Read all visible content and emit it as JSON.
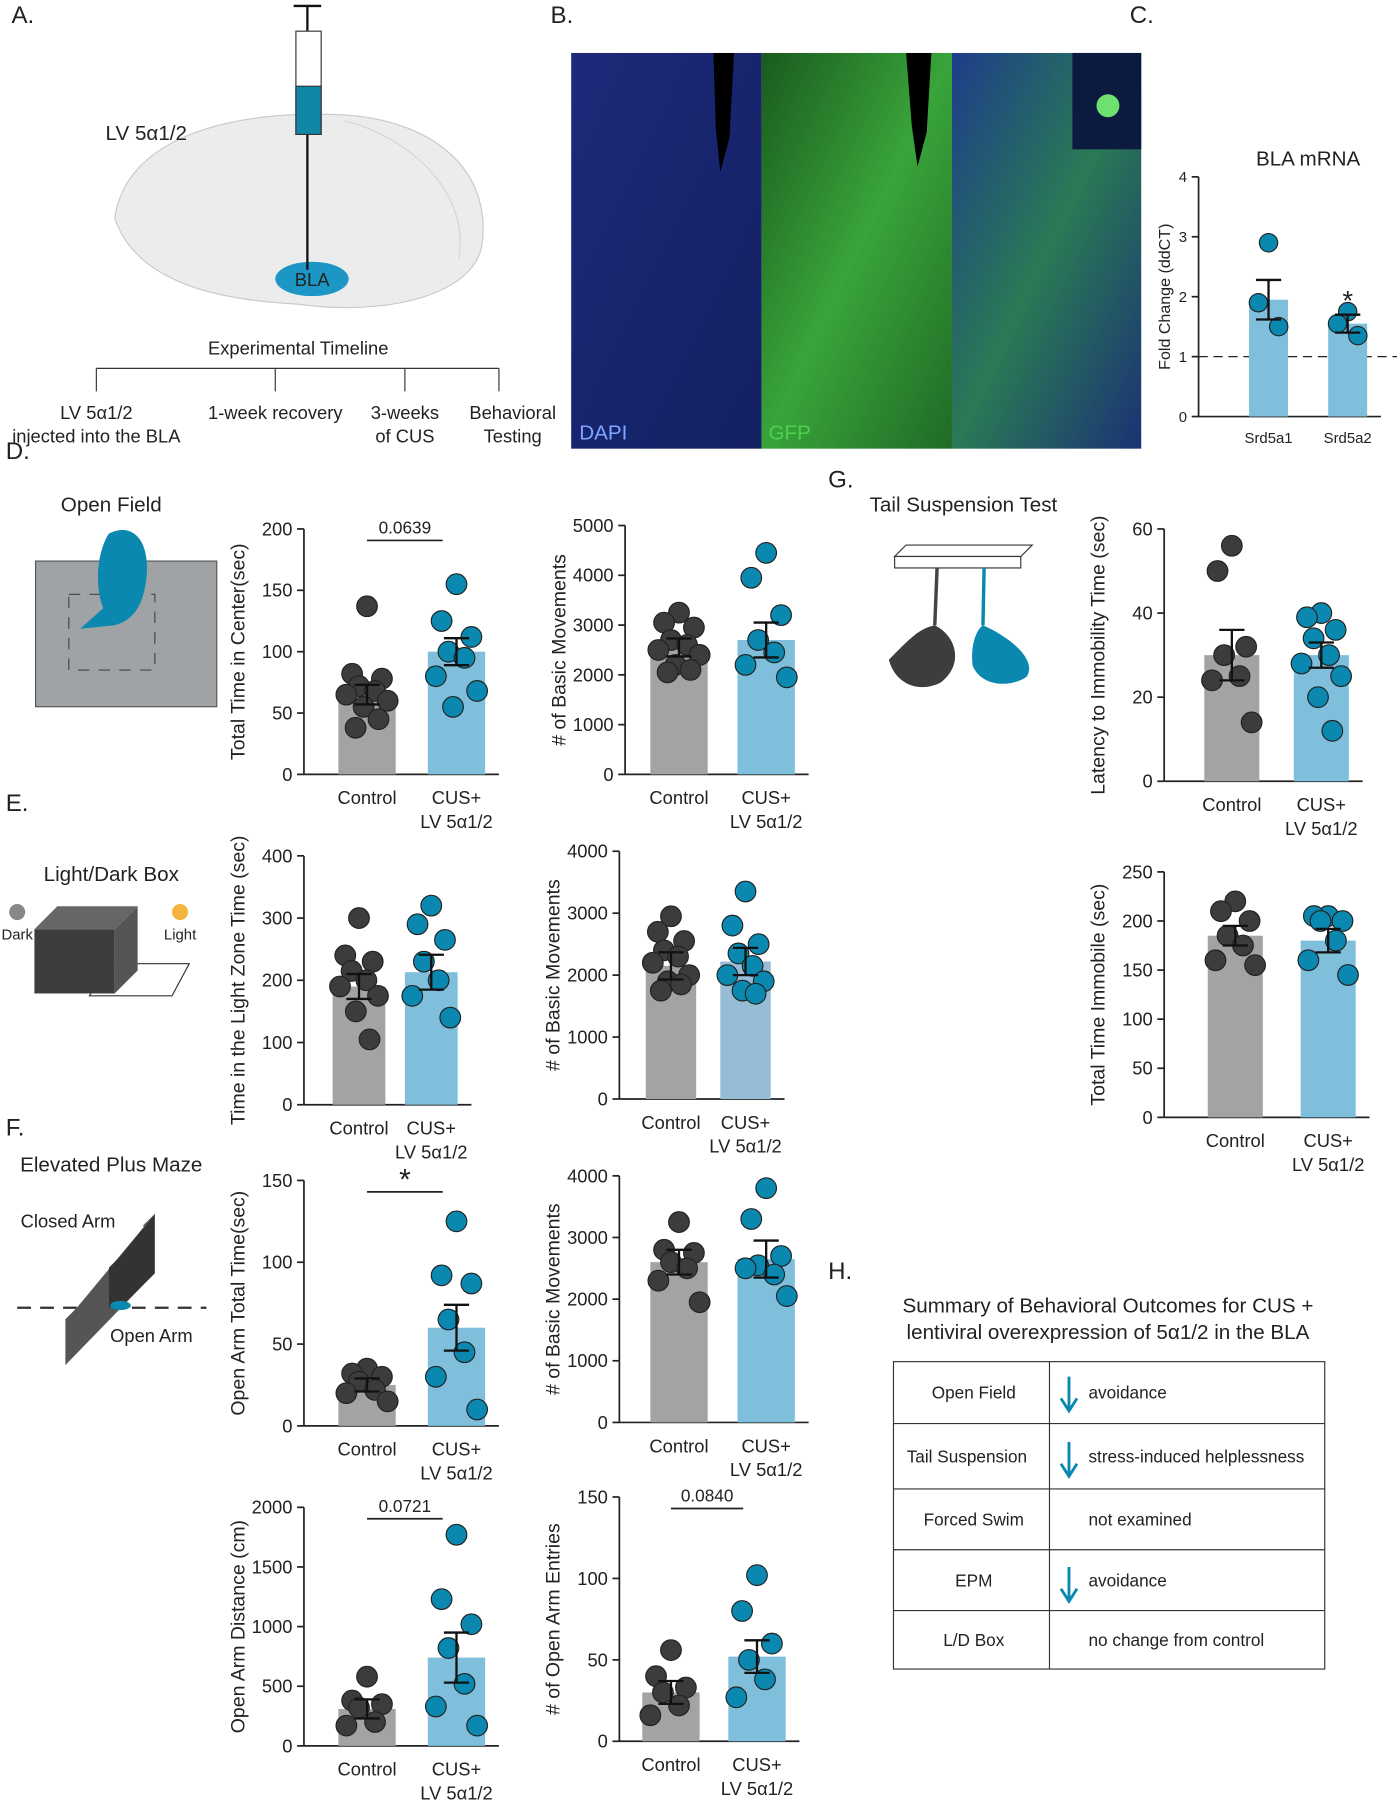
{
  "panels": {
    "a": "A.",
    "b": "B.",
    "c": "C.",
    "d": "D.",
    "e": "E.",
    "f": "F.",
    "g": "G.",
    "h": "H."
  },
  "illustration": {
    "virus": "LV 5α1/2",
    "region": "BLA",
    "timeline_title": "Experimental Timeline",
    "timeline": [
      "LV 5α1/2\ninjected into the BLA",
      "1-week recovery",
      "3-weeks\nof CUS",
      "Behavioral\nTesting"
    ],
    "stain_dapi": "DAPI",
    "stain_gfp": "GFP",
    "open_field": "Open Field",
    "light_dark": "Light/Dark Box",
    "dark": "Dark",
    "light": "Light",
    "epm": "Elevated Plus Maze",
    "closed_arm": "Closed Arm",
    "open_arm": "Open Arm",
    "tail": "Tail Suspension Test"
  },
  "table": {
    "title": "Summary of Behavioral Outcomes for CUS +\nlentiviral overexpression of 5α1/2 in the BLA",
    "rows": [
      [
        "Open Field",
        "avoidance"
      ],
      [
        "Tail Suspension",
        "stress-induced helplessness"
      ],
      [
        "Forced Swim",
        "not examined"
      ],
      [
        "EPM",
        "avoidance"
      ],
      [
        "L/D Box",
        "no change from control"
      ]
    ]
  },
  "chart_data": [
    {
      "type": "bar",
      "title": "BLA mRNA",
      "ylabel": "Fold Change (ddCT)",
      "categories": [
        "Srd5a1",
        "Srd5a2"
      ],
      "values": [
        1.95,
        1.55
      ],
      "errors": [
        0.33,
        0.15
      ],
      "points": [
        [
          2.9,
          1.9,
          1.5
        ],
        [
          1.75,
          1.55,
          1.35
        ]
      ],
      "colors": [
        "#7fbfdb",
        "#7fbfdb"
      ],
      "point_colors": [
        "#0b88b0",
        "#0b88b0"
      ],
      "ylim": [
        0,
        4
      ],
      "yticks": [
        0,
        1,
        2,
        3,
        4
      ],
      "reference_line": 1,
      "annotation": "*"
    },
    {
      "type": "bar",
      "ylabel": "Total Time in Center(sec)",
      "categories": [
        "Control",
        "CUS+\nLV 5α1/2"
      ],
      "values": [
        65,
        100
      ],
      "errors": [
        8,
        11
      ],
      "points": [
        [
          137,
          82,
          78,
          72,
          68,
          65,
          60,
          55,
          45,
          38
        ],
        [
          155,
          125,
          112,
          100,
          95,
          80,
          68,
          55
        ]
      ],
      "colors": [
        "#a3a3a3",
        "#7fbfdb"
      ],
      "point_colors": [
        "#3c3c3c",
        "#0b88b0"
      ],
      "ylim": [
        0,
        200
      ],
      "yticks": [
        0,
        50,
        100,
        150,
        200
      ],
      "bracket_label": "0.0639"
    },
    {
      "type": "bar",
      "ylabel": "# of Basic Movements",
      "categories": [
        "Control",
        "CUS+\nLV 5α1/2"
      ],
      "values": [
        2550,
        2700
      ],
      "errors": [
        180,
        350
      ],
      "points": [
        [
          3250,
          3050,
          2950,
          2700,
          2600,
          2500,
          2400,
          2200,
          2100,
          2050
        ],
        [
          4450,
          3950,
          3200,
          2700,
          2450,
          2200,
          1950
        ]
      ],
      "colors": [
        "#a3a3a3",
        "#7fbfdb"
      ],
      "point_colors": [
        "#3c3c3c",
        "#0b88b0"
      ],
      "ylim": [
        0,
        5000
      ],
      "yticks": [
        0,
        1000,
        2000,
        3000,
        4000,
        5000
      ]
    },
    {
      "type": "bar",
      "ylabel": "Time in the Light Zone Time (sec)",
      "categories": [
        "Control",
        "CUS+\nLV 5α1/2"
      ],
      "values": [
        190,
        213
      ],
      "errors": [
        20,
        28
      ],
      "points": [
        [
          300,
          240,
          230,
          215,
          200,
          190,
          175,
          150,
          105
        ],
        [
          320,
          290,
          265,
          230,
          200,
          175,
          140
        ]
      ],
      "colors": [
        "#a3a3a3",
        "#7fbfdb"
      ],
      "point_colors": [
        "#3c3c3c",
        "#0b88b0"
      ],
      "ylim": [
        0,
        400
      ],
      "yticks": [
        0,
        100,
        200,
        300,
        400
      ]
    },
    {
      "type": "bar",
      "ylabel": "# of Basic Movements",
      "categories": [
        "Control",
        "CUS+\nLV 5α1/2"
      ],
      "values": [
        2150,
        2220
      ],
      "errors": [
        220,
        220
      ],
      "points": [
        [
          2950,
          2700,
          2550,
          2400,
          2300,
          2200,
          2000,
          1900,
          1850,
          1750
        ],
        [
          3350,
          2800,
          2500,
          2350,
          2150,
          2000,
          1900,
          1750,
          1700
        ]
      ],
      "colors": [
        "#a3a3a3",
        "#97bcd6"
      ],
      "point_colors": [
        "#3c3c3c",
        "#0b88b0"
      ],
      "ylim": [
        0,
        4000
      ],
      "yticks": [
        0,
        1000,
        2000,
        3000,
        4000
      ]
    },
    {
      "type": "bar",
      "ylabel": "Open Arm Total Time(sec)",
      "categories": [
        "Control",
        "CUS+\nLV 5α1/2"
      ],
      "values": [
        25,
        60
      ],
      "errors": [
        4,
        14
      ],
      "points": [
        [
          35,
          32,
          30,
          27,
          22,
          20,
          15
        ],
        [
          125,
          92,
          87,
          65,
          45,
          30,
          10
        ]
      ],
      "colors": [
        "#a3a3a3",
        "#7fbfdb"
      ],
      "point_colors": [
        "#3c3c3c",
        "#0b88b0"
      ],
      "ylim": [
        0,
        150
      ],
      "yticks": [
        0,
        50,
        100,
        150
      ],
      "bracket_label": "*"
    },
    {
      "type": "bar",
      "ylabel": "# of Basic Movements",
      "categories": [
        "Control",
        "CUS+\nLV 5α1/2"
      ],
      "values": [
        2600,
        2650
      ],
      "errors": [
        200,
        300
      ],
      "points": [
        [
          3250,
          2800,
          2750,
          2600,
          2500,
          2300,
          1950
        ],
        [
          3800,
          3300,
          2700,
          2550,
          2400,
          2500,
          2050
        ]
      ],
      "colors": [
        "#a3a3a3",
        "#7fbfdb"
      ],
      "point_colors": [
        "#3c3c3c",
        "#0b88b0"
      ],
      "ylim": [
        0,
        4000
      ],
      "yticks": [
        0,
        1000,
        2000,
        3000,
        4000
      ]
    },
    {
      "type": "bar",
      "ylabel": "Open Arm Distance (cm)",
      "categories": [
        "Control",
        "CUS+\nLV 5α1/2"
      ],
      "values": [
        310,
        740
      ],
      "errors": [
        80,
        210
      ],
      "points": [
        [
          580,
          380,
          350,
          320,
          200,
          170
        ],
        [
          1770,
          1230,
          1020,
          820,
          520,
          330,
          170
        ]
      ],
      "colors": [
        "#a3a3a3",
        "#7fbfdb"
      ],
      "point_colors": [
        "#3c3c3c",
        "#0b88b0"
      ],
      "ylim": [
        0,
        2000
      ],
      "yticks": [
        0,
        500,
        1000,
        1500,
        2000
      ],
      "bracket_label": "0.0721"
    },
    {
      "type": "bar",
      "ylabel": "# of Open Arm Entries",
      "categories": [
        "Control",
        "CUS+\nLV 5α1/2"
      ],
      "values": [
        30,
        52
      ],
      "errors": [
        7,
        10
      ],
      "points": [
        [
          56,
          40,
          33,
          30,
          22,
          16
        ],
        [
          102,
          80,
          60,
          50,
          38,
          27
        ]
      ],
      "colors": [
        "#a3a3a3",
        "#7fbfdb"
      ],
      "point_colors": [
        "#3c3c3c",
        "#0b88b0"
      ],
      "ylim": [
        0,
        150
      ],
      "yticks": [
        0,
        50,
        100,
        150
      ],
      "bracket_label": "0.0840"
    },
    {
      "type": "bar",
      "ylabel": "Latency to Immobility Time (sec)",
      "categories": [
        "Control",
        "CUS+\nLV 5α1/2"
      ],
      "values": [
        30,
        30
      ],
      "errors": [
        6,
        3
      ],
      "points": [
        [
          56,
          50,
          32,
          30,
          25,
          24,
          14
        ],
        [
          40,
          39,
          36,
          34,
          30,
          28,
          25,
          20,
          12
        ]
      ],
      "colors": [
        "#a3a3a3",
        "#7fbfdb"
      ],
      "point_colors": [
        "#3c3c3c",
        "#0b88b0"
      ],
      "ylim": [
        0,
        60
      ],
      "yticks": [
        0,
        20,
        40,
        60
      ]
    },
    {
      "type": "bar",
      "ylabel": "Total Time Immobile (sec)",
      "categories": [
        "Control",
        "CUS+\nLV 5α1/2"
      ],
      "values": [
        185,
        180
      ],
      "errors": [
        10,
        12
      ],
      "points": [
        [
          220,
          210,
          200,
          185,
          175,
          160,
          155
        ],
        [
          205,
          205,
          200,
          200,
          180,
          160,
          145
        ]
      ],
      "colors": [
        "#a3a3a3",
        "#7fbfdb"
      ],
      "point_colors": [
        "#3c3c3c",
        "#0b88b0"
      ],
      "ylim": [
        0,
        250
      ],
      "yticks": [
        0,
        50,
        100,
        150,
        200,
        250
      ]
    }
  ]
}
